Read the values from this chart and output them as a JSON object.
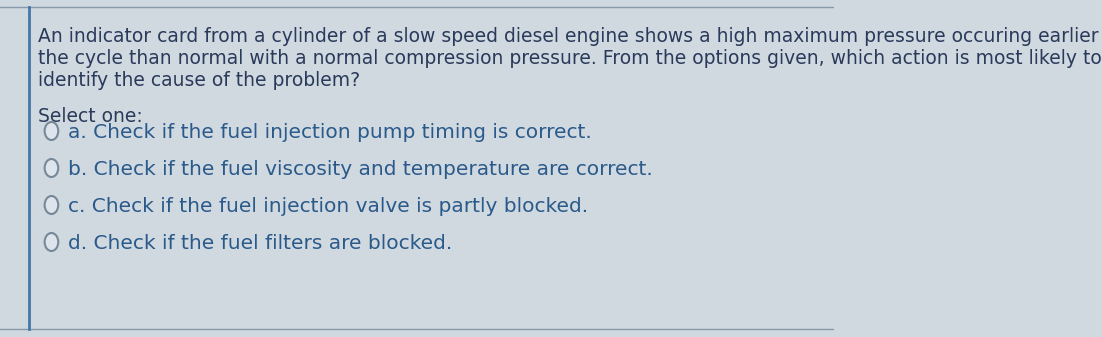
{
  "background_color": "#d0d8e0",
  "card_color": "#dde4ec",
  "border_left_color": "#4477aa",
  "border_line_color": "#8899aa",
  "question_text_line1": "An indicator card from a cylinder of a slow speed diesel engine shows a high maximum pressure occuring earlier in",
  "question_text_line2": "the cycle than normal with a normal compression pressure. From the options given, which action is most likely to",
  "question_text_line3": "identify the cause of the problem?",
  "select_one_label": "Select one:",
  "options": [
    "a. Check if the fuel injection pump timing is correct.",
    "b. Check if the fuel viscosity and temperature are correct.",
    "c. Check if the fuel injection valve is partly blocked.",
    "d. Check if the fuel filters are blocked."
  ],
  "question_fontsize": 13.5,
  "option_fontsize": 14.5,
  "select_fontsize": 13.5,
  "text_color": "#2a3a5a",
  "option_color": "#2a5a8a",
  "select_color": "#2a3a5a",
  "circle_edge_color": "#778899",
  "circle_fill_color": "#dde4ec"
}
